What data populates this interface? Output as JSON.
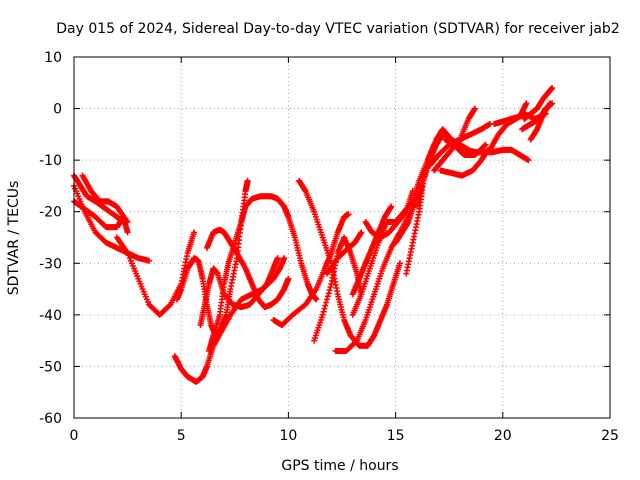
{
  "chart_data": {
    "type": "scatter",
    "title": "Day 015 of 2024, Sidereal Day-to-day VTEC variation (SDTVAR) for receiver jab2",
    "xlabel": "GPS time / hours",
    "ylabel": "SDTVAR / TECUs",
    "xlim": [
      0,
      25
    ],
    "ylim": [
      -60,
      10
    ],
    "xticks": [
      0,
      5,
      10,
      15,
      20,
      25
    ],
    "yticks": [
      -60,
      -50,
      -40,
      -30,
      -20,
      -10,
      0,
      10
    ],
    "grid": true,
    "marker": "+",
    "color": "#ff0000",
    "series": [
      {
        "points": [
          [
            0,
            -13
          ],
          [
            0.3,
            -15
          ],
          [
            0.6,
            -17
          ],
          [
            1.0,
            -18
          ],
          [
            1.5,
            -19.5
          ],
          [
            2.0,
            -21
          ],
          [
            2.3,
            -22
          ]
        ]
      },
      {
        "points": [
          [
            0,
            -15
          ],
          [
            0.5,
            -20
          ],
          [
            1.0,
            -24
          ],
          [
            1.5,
            -26
          ],
          [
            2.0,
            -27
          ],
          [
            2.5,
            -28
          ],
          [
            3.0,
            -29
          ],
          [
            3.5,
            -29.5
          ]
        ]
      },
      {
        "points": [
          [
            0,
            -18
          ],
          [
            0.5,
            -19.5
          ],
          [
            1.0,
            -21
          ],
          [
            1.5,
            -23
          ],
          [
            2.0,
            -23
          ],
          [
            2.3,
            -21
          ],
          [
            2.5,
            -24
          ]
        ]
      },
      {
        "points": [
          [
            0.4,
            -13
          ],
          [
            0.8,
            -16
          ],
          [
            1.2,
            -18
          ],
          [
            1.6,
            -18
          ],
          [
            2.0,
            -19
          ],
          [
            2.5,
            -22
          ]
        ]
      },
      {
        "points": [
          [
            2.0,
            -25
          ],
          [
            2.5,
            -28
          ],
          [
            3.0,
            -33
          ],
          [
            3.5,
            -38
          ],
          [
            4.0,
            -40
          ],
          [
            4.5,
            -38
          ],
          [
            5.0,
            -34
          ],
          [
            5.3,
            -28
          ],
          [
            5.6,
            -24
          ]
        ]
      },
      {
        "points": [
          [
            4.7,
            -48
          ],
          [
            5.0,
            -50.5
          ],
          [
            5.3,
            -52
          ],
          [
            5.7,
            -53
          ],
          [
            6.0,
            -52
          ],
          [
            6.2,
            -50
          ],
          [
            6.5,
            -46
          ],
          [
            6.9,
            -43
          ],
          [
            7.3,
            -40
          ],
          [
            7.8,
            -37
          ],
          [
            8.3,
            -36
          ],
          [
            8.8,
            -35
          ],
          [
            9.3,
            -33
          ],
          [
            9.6,
            -31
          ],
          [
            9.8,
            -29
          ]
        ]
      },
      {
        "points": [
          [
            4.8,
            -37
          ],
          [
            5.0,
            -35
          ],
          [
            5.3,
            -31
          ],
          [
            5.6,
            -29
          ],
          [
            5.8,
            -29.5
          ],
          [
            6.0,
            -33
          ],
          [
            6.2,
            -38
          ],
          [
            6.4,
            -42
          ],
          [
            6.6,
            -44
          ],
          [
            6.8,
            -43
          ],
          [
            7.1,
            -40
          ],
          [
            7.3,
            -35
          ],
          [
            7.6,
            -29
          ],
          [
            7.8,
            -22
          ],
          [
            8.0,
            -16
          ],
          [
            8.1,
            -14
          ]
        ]
      },
      {
        "points": [
          [
            5.9,
            -42
          ],
          [
            6.1,
            -38
          ],
          [
            6.3,
            -34
          ],
          [
            6.5,
            -31
          ],
          [
            6.7,
            -32
          ],
          [
            7.0,
            -36
          ],
          [
            7.4,
            -38
          ],
          [
            7.8,
            -38.5
          ],
          [
            8.2,
            -38
          ],
          [
            8.6,
            -36
          ],
          [
            9.0,
            -34
          ],
          [
            9.3,
            -31
          ],
          [
            9.5,
            -29
          ]
        ]
      },
      {
        "points": [
          [
            6.3,
            -47
          ],
          [
            6.5,
            -44
          ],
          [
            6.8,
            -40
          ],
          [
            7.0,
            -34
          ],
          [
            7.2,
            -30
          ],
          [
            7.5,
            -26
          ],
          [
            7.8,
            -22
          ],
          [
            8.0,
            -19
          ],
          [
            8.3,
            -17.5
          ],
          [
            8.7,
            -17
          ],
          [
            9.2,
            -17
          ],
          [
            9.5,
            -17.5
          ],
          [
            9.8,
            -19
          ],
          [
            10.0,
            -21
          ],
          [
            10.3,
            -25
          ],
          [
            10.6,
            -30
          ],
          [
            10.9,
            -34
          ],
          [
            11.1,
            -36
          ],
          [
            11.3,
            -37
          ]
        ]
      },
      {
        "points": [
          [
            6.2,
            -27
          ],
          [
            6.5,
            -24
          ],
          [
            6.8,
            -23.5
          ],
          [
            7.0,
            -24
          ],
          [
            7.3,
            -26
          ],
          [
            7.6,
            -28
          ],
          [
            8.0,
            -31
          ],
          [
            8.3,
            -34
          ],
          [
            8.6,
            -37
          ],
          [
            8.9,
            -38.5
          ],
          [
            9.2,
            -38
          ],
          [
            9.5,
            -37
          ],
          [
            9.8,
            -35
          ],
          [
            10.0,
            -33
          ]
        ]
      },
      {
        "points": [
          [
            9.3,
            -41
          ],
          [
            9.7,
            -42
          ],
          [
            10.2,
            -40
          ],
          [
            10.8,
            -38
          ],
          [
            11.3,
            -35
          ],
          [
            11.7,
            -31
          ],
          [
            12.0,
            -28
          ],
          [
            12.3,
            -24
          ],
          [
            12.6,
            -21
          ],
          [
            12.8,
            -20.5
          ]
        ]
      },
      {
        "points": [
          [
            10.5,
            -14
          ],
          [
            10.8,
            -16
          ],
          [
            11.2,
            -20
          ],
          [
            11.6,
            -25
          ],
          [
            12.0,
            -30
          ],
          [
            12.3,
            -36
          ],
          [
            12.6,
            -41
          ],
          [
            12.9,
            -44
          ],
          [
            13.3,
            -46
          ],
          [
            13.7,
            -46
          ],
          [
            14.0,
            -44
          ],
          [
            14.3,
            -41
          ],
          [
            14.6,
            -38
          ],
          [
            14.9,
            -34
          ],
          [
            15.2,
            -30
          ]
        ]
      },
      {
        "points": [
          [
            11.2,
            -45
          ],
          [
            11.6,
            -40
          ],
          [
            12.0,
            -34
          ],
          [
            12.3,
            -28
          ],
          [
            12.6,
            -25
          ],
          [
            12.9,
            -28
          ],
          [
            13.2,
            -32
          ],
          [
            13.4,
            -36
          ]
        ]
      },
      {
        "points": [
          [
            11.8,
            -32
          ],
          [
            12.3,
            -29
          ],
          [
            12.8,
            -27
          ],
          [
            13.1,
            -26
          ],
          [
            13.4,
            -24
          ]
        ]
      },
      {
        "points": [
          [
            12.2,
            -47
          ],
          [
            12.7,
            -47
          ],
          [
            13.2,
            -45
          ],
          [
            13.6,
            -41
          ],
          [
            14.0,
            -36
          ],
          [
            14.4,
            -31
          ],
          [
            14.8,
            -27
          ],
          [
            15.2,
            -24
          ],
          [
            15.7,
            -20
          ],
          [
            16.1,
            -16
          ],
          [
            16.5,
            -11
          ],
          [
            16.9,
            -6
          ],
          [
            17.2,
            -4
          ],
          [
            17.6,
            -6
          ],
          [
            18.0,
            -7
          ],
          [
            18.4,
            -8
          ]
        ]
      },
      {
        "points": [
          [
            13.0,
            -40
          ],
          [
            13.4,
            -36
          ],
          [
            13.8,
            -31
          ],
          [
            14.2,
            -26
          ],
          [
            14.6,
            -22
          ],
          [
            15.0,
            -22
          ],
          [
            15.4,
            -20
          ],
          [
            15.8,
            -18
          ],
          [
            16.1,
            -14
          ],
          [
            16.5,
            -10
          ],
          [
            16.9,
            -6
          ],
          [
            17.3,
            -5
          ],
          [
            17.7,
            -7
          ],
          [
            18.2,
            -9
          ],
          [
            18.7,
            -9
          ],
          [
            19.2,
            -7
          ]
        ]
      },
      {
        "points": [
          [
            13.6,
            -22
          ],
          [
            13.9,
            -24
          ],
          [
            14.3,
            -25
          ],
          [
            14.7,
            -24
          ],
          [
            15.1,
            -22
          ],
          [
            15.5,
            -20
          ],
          [
            15.8,
            -16
          ]
        ]
      },
      {
        "points": [
          [
            15.0,
            -26
          ],
          [
            15.3,
            -24
          ],
          [
            15.6,
            -22
          ],
          [
            15.9,
            -18
          ]
        ]
      },
      {
        "points": [
          [
            13.0,
            -36
          ],
          [
            13.3,
            -33
          ],
          [
            13.6,
            -30
          ],
          [
            13.9,
            -27
          ],
          [
            14.2,
            -24
          ],
          [
            14.5,
            -21
          ],
          [
            14.8,
            -19
          ]
        ]
      },
      {
        "points": [
          [
            15.5,
            -32
          ],
          [
            15.8,
            -26
          ],
          [
            16.1,
            -20
          ],
          [
            16.3,
            -14
          ],
          [
            16.5,
            -10
          ],
          [
            16.8,
            -7
          ]
        ]
      },
      {
        "points": [
          [
            16.0,
            -19
          ],
          [
            16.3,
            -14
          ],
          [
            16.6,
            -10
          ],
          [
            16.9,
            -7
          ],
          [
            17.2,
            -5
          ]
        ]
      },
      {
        "points": [
          [
            16.8,
            -12
          ],
          [
            17.2,
            -10
          ],
          [
            17.6,
            -8
          ],
          [
            18.0,
            -6
          ],
          [
            18.4,
            -2
          ],
          [
            18.7,
            0
          ]
        ]
      },
      {
        "points": [
          [
            16.6,
            -11
          ],
          [
            17.0,
            -9
          ],
          [
            17.5,
            -7
          ],
          [
            18.0,
            -6
          ],
          [
            18.5,
            -5
          ],
          [
            19.0,
            -4
          ],
          [
            19.4,
            -3
          ]
        ]
      },
      {
        "points": [
          [
            17.1,
            -12
          ],
          [
            17.6,
            -12.5
          ],
          [
            18.1,
            -13
          ],
          [
            18.6,
            -12
          ],
          [
            19.0,
            -10
          ],
          [
            19.3,
            -8
          ]
        ]
      },
      {
        "points": [
          [
            17.3,
            -6
          ],
          [
            17.8,
            -7
          ],
          [
            18.3,
            -8
          ],
          [
            18.8,
            -8.5
          ],
          [
            19.5,
            -8.5
          ],
          [
            20.0,
            -8
          ],
          [
            20.4,
            -8
          ],
          [
            20.8,
            -9
          ],
          [
            21.2,
            -10
          ]
        ]
      },
      {
        "points": [
          [
            19.4,
            -8
          ],
          [
            19.8,
            -5
          ],
          [
            20.2,
            -3
          ],
          [
            20.6,
            -2
          ],
          [
            21.0,
            -1
          ],
          [
            21.5,
            -2
          ],
          [
            22.0,
            -1
          ]
        ]
      },
      {
        "points": [
          [
            19.6,
            -3
          ],
          [
            20.0,
            -2.5
          ],
          [
            20.4,
            -2
          ],
          [
            20.8,
            -1.5
          ],
          [
            21.1,
            1
          ]
        ]
      },
      {
        "points": [
          [
            21.0,
            -2
          ],
          [
            21.3,
            -1
          ],
          [
            21.6,
            0
          ],
          [
            21.9,
            2
          ],
          [
            22.1,
            3
          ],
          [
            22.3,
            4
          ]
        ]
      },
      {
        "points": [
          [
            20.9,
            -4
          ],
          [
            21.3,
            -3
          ],
          [
            21.7,
            -2
          ],
          [
            22.0,
            0
          ],
          [
            22.3,
            1
          ]
        ]
      },
      {
        "points": [
          [
            21.3,
            -6
          ],
          [
            21.6,
            -4
          ],
          [
            21.9,
            -1
          ],
          [
            22.2,
            1
          ]
        ]
      }
    ]
  }
}
